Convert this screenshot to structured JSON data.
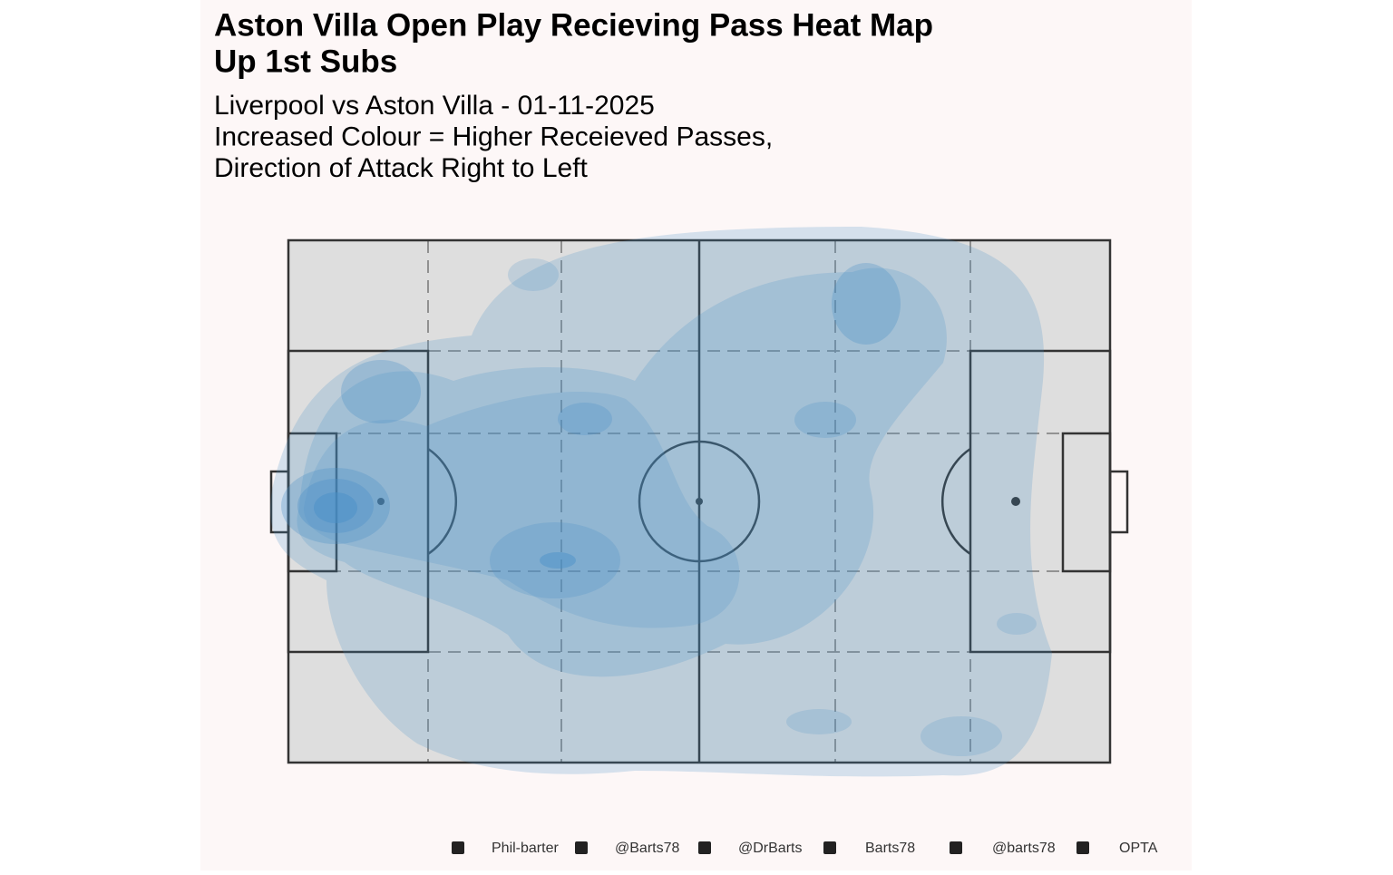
{
  "chart_data": {
    "type": "pitch-heatmap",
    "title": [
      "Aston Villa Open Play Recieving Pass Heat Map",
      "Up 1st Subs"
    ],
    "subtitle": [
      "Liverpool vs Aston Villa - 01-11-2025",
      "Increased Colour = Higher Receieved Passes,",
      "Direction of Attack Right to Left"
    ],
    "caption": [
      "Phil-barter",
      "@Barts78",
      "@DrBarts",
      "Barts78",
      "@barts78",
      "OPTA"
    ],
    "color": "#4a90c8"
  }
}
